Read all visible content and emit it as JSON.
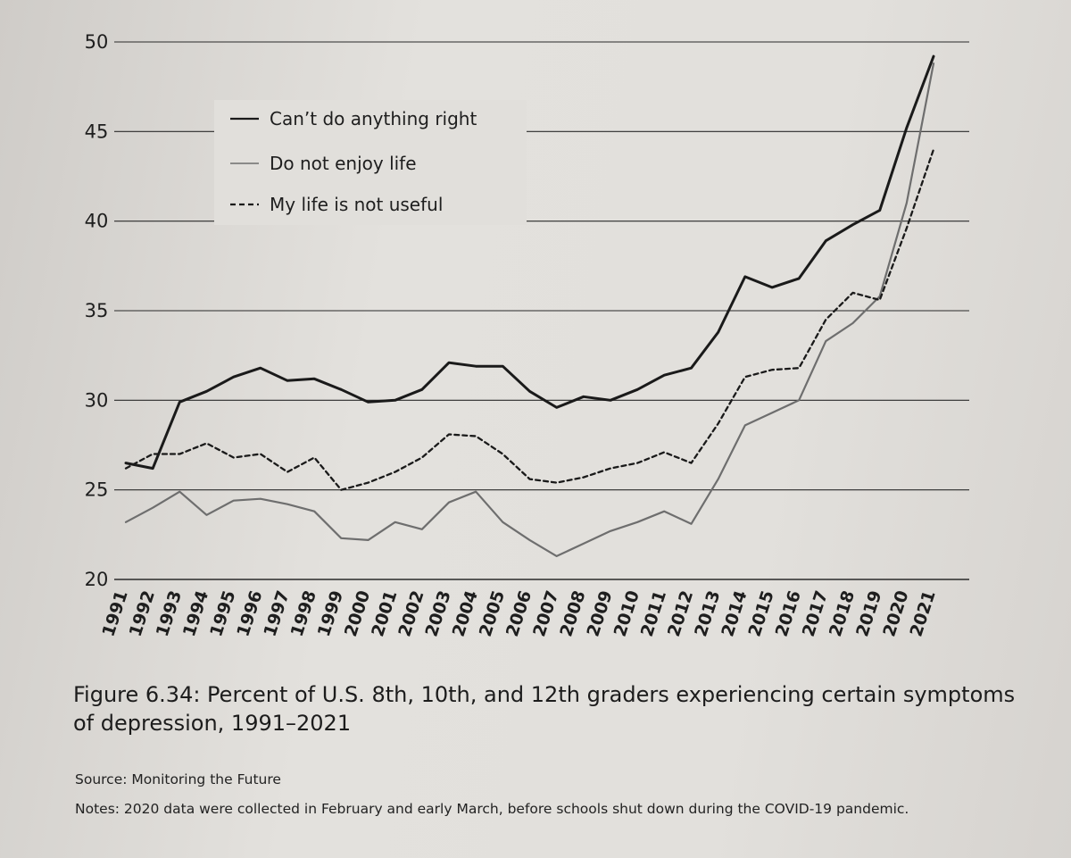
{
  "chart_data": {
    "type": "line",
    "title": "",
    "xlabel": "",
    "ylabel": "",
    "ylim": [
      20,
      50
    ],
    "yticks": [
      "20",
      "25",
      "30",
      "35",
      "40",
      "45",
      "50"
    ],
    "x": [
      "1991",
      "1992",
      "1993",
      "1994",
      "1995",
      "1996",
      "1997",
      "1998",
      "1999",
      "2000",
      "2001",
      "2002",
      "2003",
      "2004",
      "2005",
      "2006",
      "2007",
      "2008",
      "2009",
      "2010",
      "2011",
      "2012",
      "2013",
      "2014",
      "2015",
      "2016",
      "2017",
      "2018",
      "2019",
      "2020",
      "2021"
    ],
    "grid": true,
    "legend_position": "top-left",
    "series": [
      {
        "name": "Can’t do anything right",
        "style": "solid-dark",
        "color": "#1a1a1a",
        "values": [
          26.5,
          26.2,
          29.9,
          30.5,
          31.3,
          31.8,
          31.1,
          31.2,
          30.6,
          29.9,
          30.0,
          30.6,
          32.1,
          31.9,
          31.9,
          30.5,
          29.6,
          30.2,
          30.0,
          30.6,
          31.4,
          31.8,
          33.8,
          36.9,
          36.3,
          36.8,
          38.9,
          39.8,
          40.6,
          45.2,
          49.2
        ]
      },
      {
        "name": "Do not enjoy life",
        "style": "solid-gray",
        "color": "#6e6e6e",
        "values": [
          23.2,
          24.0,
          24.9,
          23.6,
          24.4,
          24.5,
          24.2,
          23.8,
          22.3,
          22.2,
          23.2,
          22.8,
          24.3,
          24.9,
          23.2,
          22.2,
          21.3,
          22.0,
          22.7,
          23.2,
          23.8,
          23.1,
          25.6,
          28.6,
          29.3,
          30.0,
          33.3,
          34.3,
          35.8,
          41.0,
          48.8
        ]
      },
      {
        "name": "My life is not useful",
        "style": "dashed-dark",
        "color": "#1a1a1a",
        "values": [
          26.2,
          27.0,
          27.0,
          27.6,
          26.8,
          27.0,
          26.0,
          26.8,
          25.0,
          25.4,
          26.0,
          26.8,
          28.1,
          28.0,
          27.0,
          25.6,
          25.4,
          25.7,
          26.2,
          26.5,
          27.1,
          26.5,
          28.7,
          31.3,
          31.7,
          31.8,
          34.5,
          36.0,
          35.6,
          39.6,
          44.0
        ]
      }
    ]
  },
  "caption": "Figure 6.34: Percent of U.S. 8th, 10th, and 12th graders experiencing certain symptoms of depression, 1991–2021",
  "source": "Source: Monitoring the Future",
  "notes": "Notes: 2020 data were collected in February and early March, before schools shut down during the COVID-19 pandemic."
}
